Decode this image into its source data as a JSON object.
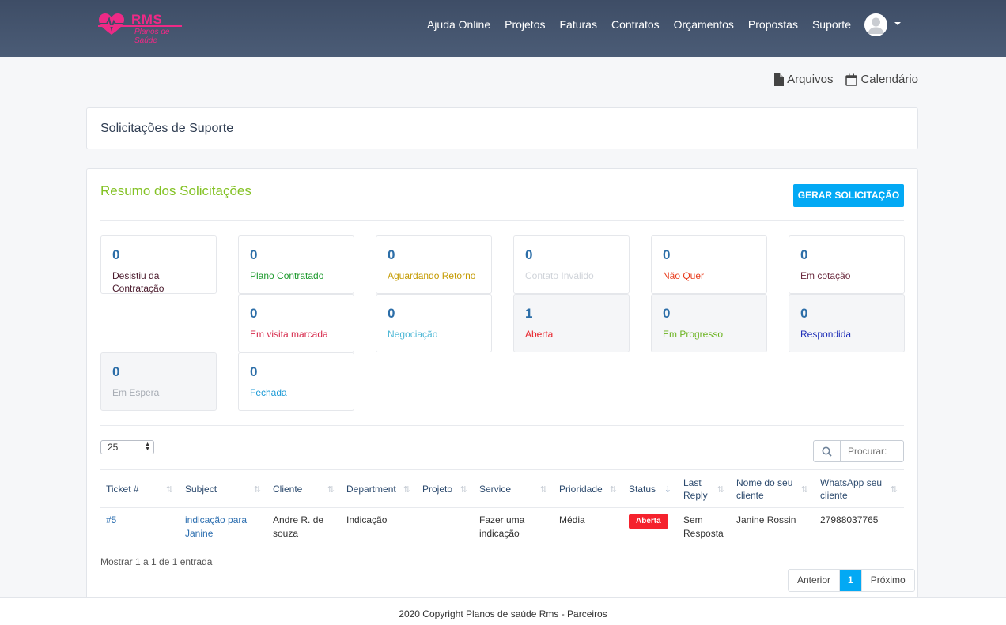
{
  "header": {
    "logo_title": "RMS",
    "logo_subtitle": "Planos de Saúde",
    "nav": [
      "Ajuda Online",
      "Projetos",
      "Faturas",
      "Contratos",
      "Orçamentos",
      "Propostas",
      "Suporte"
    ]
  },
  "quick_links": {
    "files": "Arquivos",
    "calendar": "Calendário"
  },
  "page_title": "Solicitações de Suporte",
  "summary": {
    "title": "Resumo dos Solicitações",
    "create_button": "GERAR SOLICITAÇÃO",
    "stats": [
      {
        "count": "0",
        "label": "Desistiu da Contratação",
        "color": "#4a1a2c"
      },
      {
        "count": "0",
        "label": "Plano Contratado",
        "color": "#1e9a2e"
      },
      {
        "count": "0",
        "label": "Aguardando Retorno",
        "color": "#c49a00"
      },
      {
        "count": "0",
        "label": "Contato Inválido",
        "color": "#d0d4da"
      },
      {
        "count": "0",
        "label": "Não Quer",
        "color": "#e83b1b"
      },
      {
        "count": "0",
        "label": "Em cotação",
        "color": "#6b2a3e"
      },
      {
        "count": "0",
        "label": "Em visita marcada",
        "color": "#d6284a"
      },
      {
        "count": "0",
        "label": "Negociação",
        "color": "#4fb8d6"
      },
      {
        "count": "1",
        "label": "Aberta",
        "color": "#e8242c"
      },
      {
        "count": "0",
        "label": "Em Progresso",
        "color": "#6bb320"
      },
      {
        "count": "0",
        "label": "Respondida",
        "color": "#1f2fb8"
      },
      {
        "count": "0",
        "label": "Em Espera",
        "color": "#a8adb5"
      },
      {
        "count": "0",
        "label": "Fechada",
        "color": "#1c9ad6"
      }
    ]
  },
  "table_controls": {
    "page_length": "25",
    "search_placeholder": "Procurar:"
  },
  "table": {
    "columns": [
      "Ticket #",
      "Subject",
      "Cliente",
      "Department",
      "Projeto",
      "Service",
      "Prioridade",
      "Status",
      "Last Reply",
      "Nome do seu cliente",
      "WhatsApp seu cliente"
    ],
    "rows": [
      {
        "ticket": "#5",
        "subject": "indicação para Janine",
        "cliente": "Andre R. de souza",
        "department": "Indicação",
        "projeto": "",
        "service": "Fazer uma indicação",
        "prioridade": "Média",
        "status": "Aberta",
        "last_reply": "Sem Resposta",
        "nome_cliente": "Janine Rossin",
        "whatsapp": "27988037765"
      }
    ]
  },
  "table_info": "Mostrar 1 a 1 de 1 entrada",
  "pagination": {
    "prev": "Anterior",
    "current": "1",
    "next": "Próximo"
  },
  "footer": "2020 Copyright Planos de saúde Rms - Parceiros"
}
